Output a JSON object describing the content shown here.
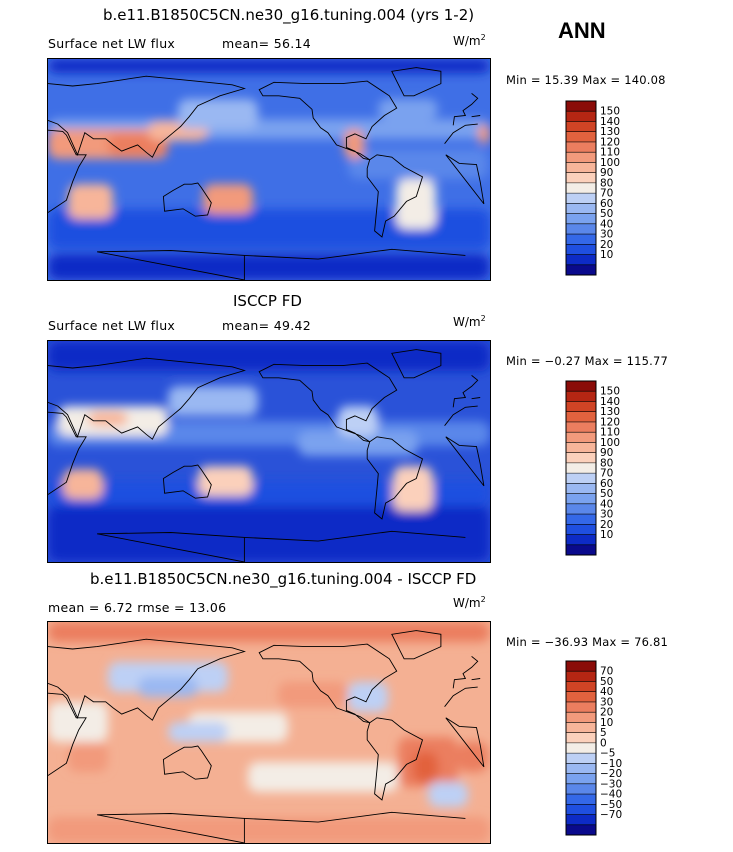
{
  "season": "ANN",
  "colors": {
    "abs_scale": [
      "#0a0a8c",
      "#0d2bc6",
      "#1f4fe0",
      "#3468e8",
      "#5a87ea",
      "#7aa2ef",
      "#9ab8f2",
      "#bdd0f5",
      "#f3ede6",
      "#fbd0bb",
      "#f7b59a",
      "#f29a7c",
      "#eb7e5f",
      "#e2623e",
      "#d04425",
      "#b52613",
      "#8a0c08"
    ],
    "diff_scale": [
      "#0a0a8c",
      "#0d2bc6",
      "#1f4fe0",
      "#3468e8",
      "#5a87ea",
      "#7aa2ef",
      "#9ab8f2",
      "#bdd0f5",
      "#f3ede6",
      "#fbd0bb",
      "#f7b59a",
      "#f29a7c",
      "#eb7e5f",
      "#e2623e",
      "#d04425",
      "#b52613",
      "#8a0c08"
    ]
  },
  "panels": [
    {
      "title": "b.e11.B1850C5CN.ne30_g16.tuning.004 (yrs 1-2)",
      "variable": "Surface net LW flux",
      "stat_text": "mean=  56.14",
      "units": "W/m",
      "units_exp": "2",
      "minmax": "Min =  15.39 Max = 140.08",
      "colorbar_labels": [
        "150",
        "140",
        "130",
        "120",
        "110",
        "100",
        "90",
        "80",
        "70",
        "60",
        "50",
        "40",
        "30",
        "20",
        "10"
      ],
      "field": "model"
    },
    {
      "title": "ISCCP FD",
      "variable": "Surface net LW flux",
      "stat_text": "mean=  49.42",
      "units": "W/m",
      "units_exp": "2",
      "minmax": "Min =  −0.27 Max = 115.77",
      "colorbar_labels": [
        "150",
        "140",
        "130",
        "120",
        "110",
        "100",
        "90",
        "80",
        "70",
        "60",
        "50",
        "40",
        "30",
        "20",
        "10"
      ],
      "field": "obs"
    },
    {
      "title": "b.e11.B1850C5CN.ne30_g16.tuning.004 - ISCCP FD",
      "variable": "",
      "stat_text": "mean =   6.72         rmse =  13.06",
      "units": "W/m",
      "units_exp": "2",
      "minmax": "Min = −36.93 Max =  76.81",
      "colorbar_labels": [
        "70",
        "50",
        "40",
        "30",
        "20",
        "10",
        "5",
        "0",
        "−5",
        "−10",
        "−20",
        "−30",
        "−40",
        "−50",
        "−70"
      ],
      "field": "diff"
    }
  ]
}
